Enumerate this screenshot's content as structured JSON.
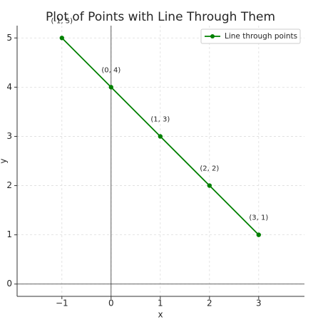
{
  "chart_data": {
    "type": "line",
    "title": "Plot of Points with Line Through Them",
    "x_label": "x",
    "y_label": "y",
    "x": [
      -1,
      0,
      1,
      2,
      3
    ],
    "series": [
      {
        "name": "Line through points",
        "color": "#008000",
        "values": [
          5,
          4,
          3,
          2,
          1
        ],
        "value_labels": [
          "(-1, 5)",
          "(0, 4)",
          "(1, 3)",
          "(2, 2)",
          "(3, 1)"
        ]
      }
    ],
    "xlim": [
      -1.91,
      3.93
    ],
    "ylim": [
      -0.25,
      5.25
    ],
    "xticks": [
      {
        "value": -1,
        "label": "−1"
      },
      0,
      1,
      2,
      3
    ],
    "yticks": [
      0,
      1,
      2,
      3,
      4,
      5
    ],
    "axhline": 0,
    "axvline": 0,
    "grid": true,
    "legend": "upper right"
  }
}
